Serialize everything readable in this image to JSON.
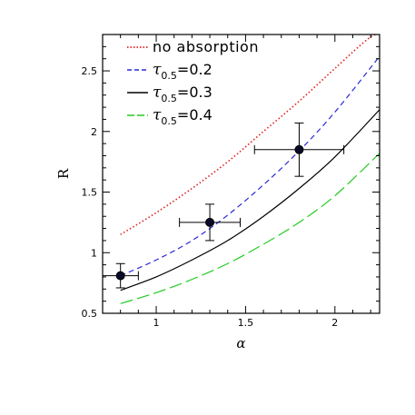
{
  "chart_data": {
    "type": "line",
    "title": "",
    "xlabel": "α",
    "ylabel": "R",
    "xlim": [
      0.7,
      2.25
    ],
    "ylim": [
      0.5,
      2.8
    ],
    "xticks": [
      1,
      1.5,
      2
    ],
    "xtick_labels": [
      "1",
      "1.5",
      "2"
    ],
    "yticks": [
      0.5,
      1,
      1.5,
      2,
      2.5
    ],
    "ytick_labels": [
      "0.5",
      "1",
      "1.5",
      "2",
      "2.5"
    ],
    "grid": false,
    "legend_position": "top-left",
    "series": [
      {
        "name": "no absorption",
        "color": "#e0201b",
        "style": "dotted",
        "x": [
          0.8,
          1.0,
          1.2,
          1.4,
          1.6,
          1.8,
          2.0,
          2.2,
          2.28
        ],
        "y": [
          1.15,
          1.33,
          1.53,
          1.75,
          2.0,
          2.25,
          2.52,
          2.78,
          2.8
        ]
      },
      {
        "name_parts": [
          "τ",
          "0.5",
          "=0.2"
        ],
        "color": "#2a2ad8",
        "style": "dashed",
        "x": [
          0.8,
          1.0,
          1.2,
          1.4,
          1.6,
          1.8,
          2.0,
          2.25
        ],
        "y": [
          0.81,
          0.94,
          1.1,
          1.31,
          1.56,
          1.84,
          2.16,
          2.62
        ]
      },
      {
        "name_parts": [
          "τ",
          "0.5",
          "=0.3"
        ],
        "color": "#000000",
        "style": "solid",
        "x": [
          0.8,
          1.0,
          1.2,
          1.4,
          1.6,
          1.8,
          2.0,
          2.25
        ],
        "y": [
          0.69,
          0.8,
          0.94,
          1.1,
          1.3,
          1.53,
          1.79,
          2.18
        ]
      },
      {
        "name_parts": [
          "τ",
          "0.5",
          "=0.4"
        ],
        "color": "#22cc22",
        "style": "longdash",
        "x": [
          0.8,
          1.0,
          1.2,
          1.4,
          1.6,
          1.8,
          2.0,
          2.25
        ],
        "y": [
          0.58,
          0.67,
          0.78,
          0.91,
          1.07,
          1.25,
          1.47,
          1.82
        ]
      }
    ],
    "data_points": [
      {
        "x": 0.8,
        "y": 0.81,
        "xerr": [
          0.1,
          0.1
        ],
        "yerr": [
          0.1,
          0.1
        ]
      },
      {
        "x": 1.3,
        "y": 1.25,
        "xerr": [
          0.17,
          0.17
        ],
        "yerr": [
          0.15,
          0.15
        ]
      },
      {
        "x": 1.8,
        "y": 1.85,
        "xerr": [
          0.25,
          0.25
        ],
        "yerr": [
          0.22,
          0.22
        ]
      }
    ]
  }
}
